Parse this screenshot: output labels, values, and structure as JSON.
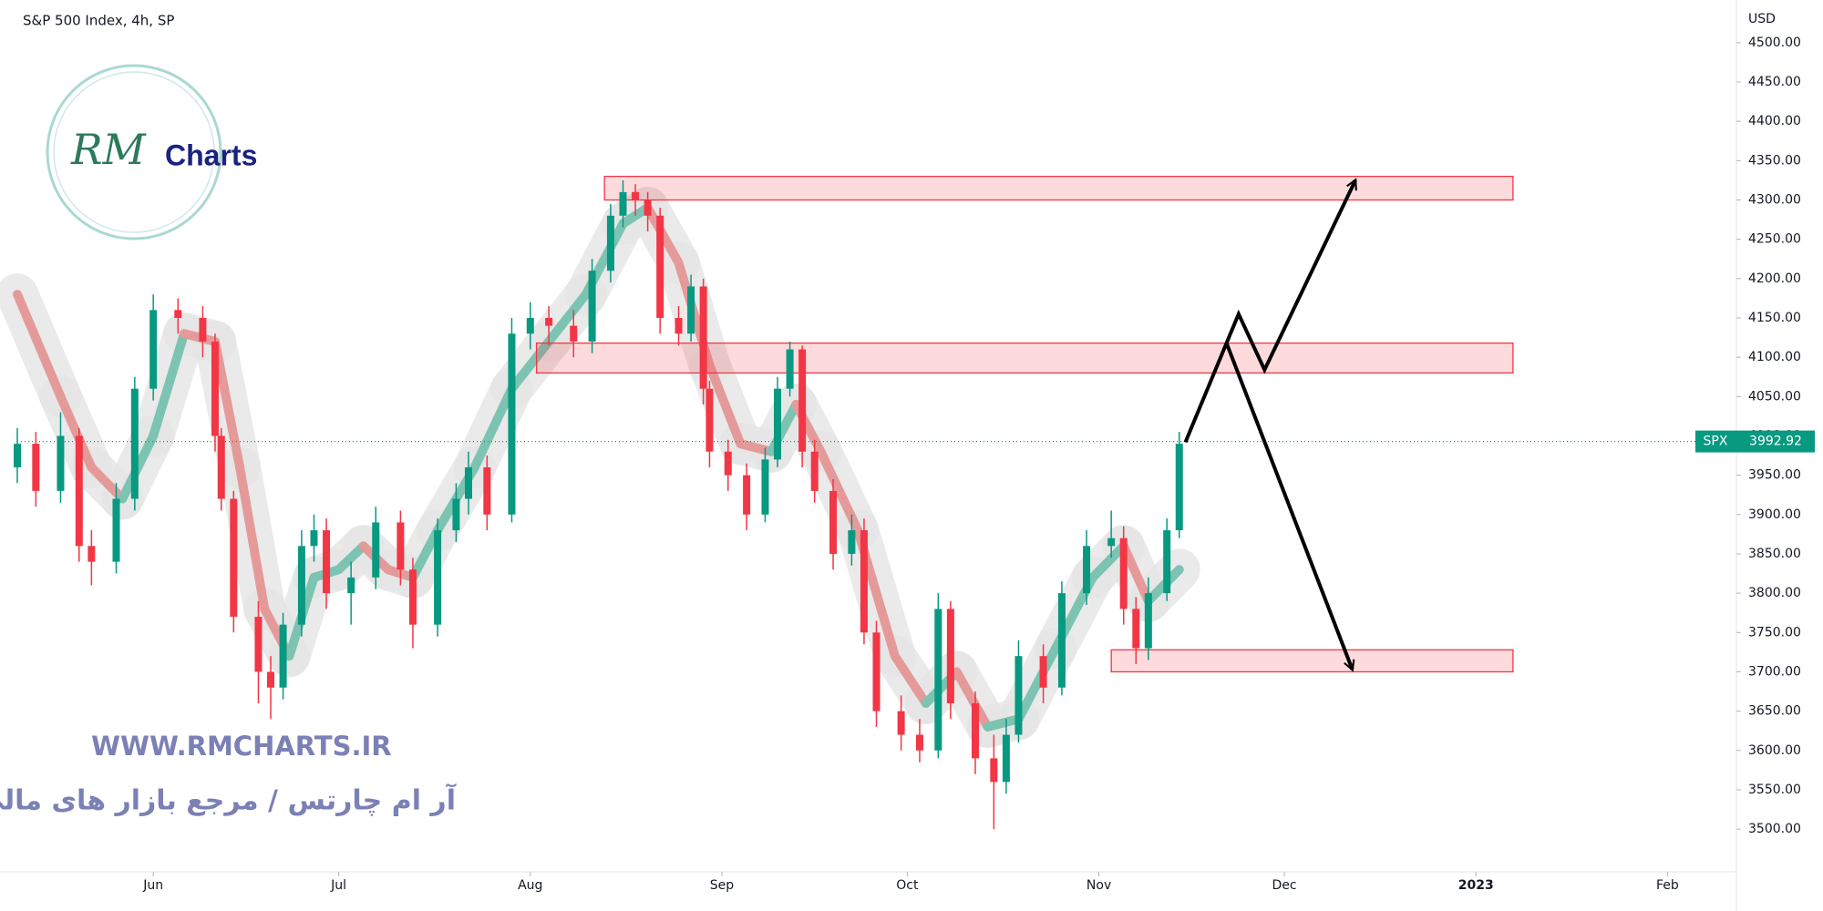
{
  "chart_data": {
    "type": "candlestick",
    "title": "S&P 500 Index, 4h, SP",
    "currency": "USD",
    "symbol": "SPX",
    "last_price": 3992.92,
    "watermark": {
      "logo_mark": "RM",
      "logo_text": "Charts",
      "url": "WWW.RMCHARTS.IR",
      "tagline": "آر ام چارتس / مرجع بازار های مالی"
    },
    "xlim": [
      -22,
      256
    ],
    "xticks": [
      {
        "value": 0,
        "label": "Jun"
      },
      {
        "value": 30,
        "label": "Jul"
      },
      {
        "value": 61,
        "label": "Aug"
      },
      {
        "value": 92,
        "label": "Sep"
      },
      {
        "value": 122,
        "label": "Oct"
      },
      {
        "value": 153,
        "label": "Nov"
      },
      {
        "value": 183,
        "label": "Dec"
      },
      {
        "value": 214,
        "label": "2023"
      },
      {
        "value": 245,
        "label": "Feb"
      }
    ],
    "ylim": [
      3448,
      4545
    ],
    "yticks": [
      {
        "value": 3500,
        "label": "3500.00"
      },
      {
        "value": 3550,
        "label": "3550.00"
      },
      {
        "value": 3600,
        "label": "3600.00"
      },
      {
        "value": 3650,
        "label": "3650.00"
      },
      {
        "value": 3700,
        "label": "3700.00"
      },
      {
        "value": 3750,
        "label": "3750.00"
      },
      {
        "value": 3800,
        "label": "3800.00"
      },
      {
        "value": 3850,
        "label": "3850.00"
      },
      {
        "value": 3900,
        "label": "3900.00"
      },
      {
        "value": 3950,
        "label": "3950.00"
      },
      {
        "value": 4000,
        "label": "4000.00"
      },
      {
        "value": 4050,
        "label": "4050.00"
      },
      {
        "value": 4100,
        "label": "4100.00"
      },
      {
        "value": 4150,
        "label": "4150.00"
      },
      {
        "value": 4200,
        "label": "4200.00"
      },
      {
        "value": 4250,
        "label": "4250.00"
      },
      {
        "value": 4300,
        "label": "4300.00"
      },
      {
        "value": 4350,
        "label": "4350.00"
      },
      {
        "value": 4400,
        "label": "4400.00"
      },
      {
        "value": 4450,
        "label": "4450.00"
      },
      {
        "value": 4500,
        "label": "4500.00"
      }
    ],
    "up_color": "#089981",
    "down_color": "#f23645",
    "candles": {
      "x": [
        -22,
        -19,
        -15,
        -12,
        -10,
        -6,
        -3,
        0,
        4,
        8,
        10,
        11,
        13,
        17,
        19,
        21,
        24,
        26,
        28,
        32,
        36,
        40,
        42,
        46,
        49,
        51,
        54,
        58,
        61,
        64,
        68,
        71,
        74,
        76,
        78,
        80,
        82,
        85,
        87,
        89,
        90,
        93,
        96,
        99,
        101,
        103,
        105,
        107,
        110,
        113,
        115,
        117,
        121,
        124,
        127,
        129,
        133,
        136,
        138,
        140,
        144,
        147,
        151,
        155,
        157,
        159,
        161,
        164,
        166
      ],
      "open": [
        3960,
        3990,
        3930,
        4000,
        3860,
        3840,
        3920,
        4060,
        4160,
        4150,
        4120,
        4000,
        3920,
        3770,
        3700,
        3680,
        3760,
        3860,
        3880,
        3800,
        3820,
        3890,
        3830,
        3760,
        3880,
        3920,
        3960,
        3900,
        4130,
        4150,
        4140,
        4120,
        4210,
        4280,
        4310,
        4300,
        4280,
        4150,
        4130,
        4190,
        4060,
        3980,
        3950,
        3900,
        3970,
        4060,
        4110,
        3980,
        3930,
        3850,
        3880,
        3750,
        3650,
        3620,
        3600,
        3780,
        3660,
        3590,
        3560,
        3620,
        3720,
        3680,
        3800,
        3860,
        3870,
        3780,
        3730,
        3800,
        3880
      ],
      "high": [
        4010,
        4005,
        4030,
        4010,
        3880,
        3940,
        4075,
        4180,
        4175,
        4165,
        4130,
        4010,
        3930,
        3790,
        3720,
        3775,
        3880,
        3900,
        3895,
        3840,
        3910,
        3905,
        3845,
        3895,
        3940,
        3980,
        3975,
        4150,
        4170,
        4165,
        4160,
        4225,
        4295,
        4325,
        4320,
        4310,
        4290,
        4165,
        4205,
        4200,
        4070,
        3995,
        3965,
        3985,
        4075,
        4120,
        4115,
        3995,
        3945,
        3900,
        3895,
        3765,
        3670,
        3640,
        3800,
        3790,
        3675,
        3620,
        3640,
        3740,
        3735,
        3815,
        3880,
        3905,
        3885,
        3795,
        3820,
        3895,
        4005
      ],
      "low": [
        3940,
        3910,
        3915,
        3840,
        3810,
        3825,
        3905,
        4045,
        4130,
        4100,
        3980,
        3905,
        3750,
        3660,
        3640,
        3665,
        3745,
        3840,
        3780,
        3760,
        3805,
        3810,
        3730,
        3745,
        3865,
        3900,
        3880,
        3890,
        4110,
        4115,
        4100,
        4105,
        4195,
        4265,
        4280,
        4260,
        4130,
        4115,
        4120,
        4040,
        3960,
        3930,
        3880,
        3890,
        3960,
        4050,
        3960,
        3915,
        3830,
        3835,
        3735,
        3630,
        3600,
        3585,
        3590,
        3640,
        3570,
        3500,
        3545,
        3610,
        3660,
        3670,
        3785,
        3845,
        3760,
        3710,
        3715,
        3790,
        3870
      ],
      "close": [
        3990,
        3930,
        4000,
        3860,
        3840,
        3920,
        4060,
        4160,
        4150,
        4120,
        4000,
        3920,
        3770,
        3700,
        3680,
        3760,
        3860,
        3880,
        3800,
        3820,
        3890,
        3830,
        3760,
        3880,
        3920,
        3960,
        3900,
        4130,
        4150,
        4140,
        4120,
        4210,
        4280,
        4310,
        4300,
        4280,
        4150,
        4130,
        4190,
        4060,
        3980,
        3950,
        3900,
        3970,
        4060,
        4110,
        3980,
        3930,
        3850,
        3880,
        3750,
        3650,
        3620,
        3600,
        3780,
        3660,
        3590,
        3560,
        3620,
        3720,
        3680,
        3800,
        3860,
        3870,
        3780,
        3730,
        3800,
        3880,
        3990
      ]
    },
    "ma": {
      "x": [
        -22,
        -15,
        -10,
        -5,
        0,
        5,
        10,
        14,
        18,
        22,
        26,
        30,
        34,
        38,
        42,
        46,
        52,
        58,
        64,
        70,
        76,
        80,
        85,
        90,
        95,
        100,
        104,
        108,
        114,
        120,
        125,
        130,
        135,
        140,
        146,
        152,
        157,
        161,
        166
      ],
      "values": [
        4180,
        4050,
        3960,
        3920,
        4000,
        4130,
        4120,
        3960,
        3780,
        3720,
        3820,
        3830,
        3860,
        3830,
        3820,
        3880,
        3960,
        4060,
        4120,
        4180,
        4270,
        4290,
        4220,
        4090,
        3990,
        3980,
        4040,
        3980,
        3880,
        3720,
        3660,
        3700,
        3630,
        3640,
        3730,
        3820,
        3860,
        3790,
        3830
      ],
      "rising_color": "#7cc3b2",
      "falling_color": "#e59a9a"
    },
    "zones": [
      {
        "x0": 73,
        "x1": 220,
        "y0": 4300,
        "y1": 4330
      },
      {
        "x0": 62,
        "x1": 220,
        "y0": 4080,
        "y1": 4118
      },
      {
        "x0": 155,
        "x1": 220,
        "y0": 3700,
        "y1": 3728
      }
    ],
    "zone_color": "#f23645",
    "projections": [
      {
        "x": [
          167,
          175.6,
          179.8,
          194.5
        ],
        "y": [
          3992,
          4155,
          4084,
          4325
        ]
      },
      {
        "x": [
          173.7,
          194
        ],
        "y": [
          4117,
          3703
        ]
      }
    ],
    "grid": false
  }
}
